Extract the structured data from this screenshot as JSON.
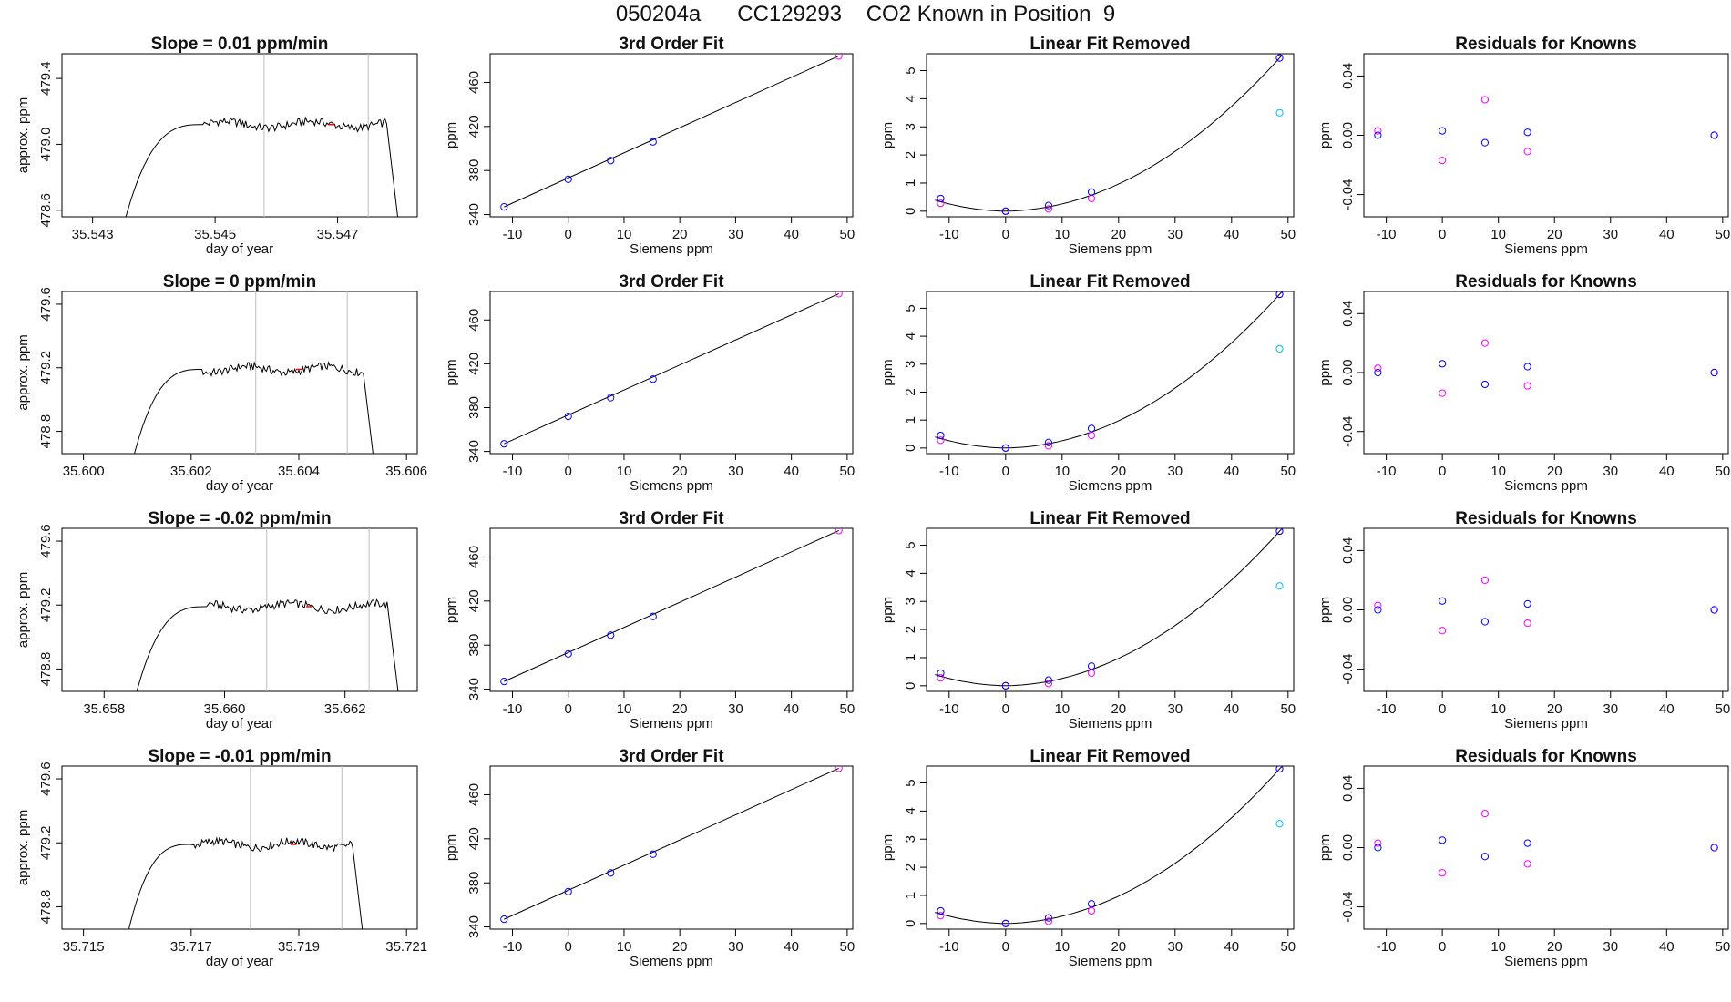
{
  "header": {
    "title": "050204a      CC129293    CO2 Known in Position  9"
  },
  "colors": {
    "series_line": "#000000",
    "red_marker": "#ff0000",
    "blue": "#0000ff",
    "magenta": "#ff00ff",
    "cyan": "#00bfff",
    "vline": "#bebebe"
  },
  "chart_data": [
    {
      "type": "line",
      "row": 1,
      "panel": "trace",
      "title": "Slope =  0.01  ppm/min",
      "xlabel": "day of year",
      "ylabel": "approx. ppm",
      "xlim": [
        35.5425,
        35.5483
      ],
      "ylim": [
        478.56,
        479.55
      ],
      "xticks": [
        "35.543",
        "35.545",
        "35.547"
      ],
      "yticks": [
        "478.6",
        "479.0",
        "479.4"
      ],
      "vlines": [
        35.5458,
        35.5475
      ],
      "trace": {
        "start": 35.5435,
        "rise": 35.5443,
        "plateau_start": 35.5448,
        "plateau_end": 35.5478,
        "end": 35.548,
        "level": 479.12,
        "base": 478.5,
        "amp": 0.025
      },
      "red_marks": [
        35.5469
      ]
    },
    {
      "type": "line",
      "row": 1,
      "panel": "fit",
      "title": "3rd Order Fit",
      "xlabel": "Siemens ppm",
      "ylabel": "ppm",
      "xlim": [
        -14,
        51
      ],
      "ylim": [
        338,
        486
      ],
      "xticks": [
        "-10",
        "0",
        "10",
        "20",
        "30",
        "40",
        "50"
      ],
      "yticks": [
        "340",
        "380",
        "420",
        "460"
      ],
      "points_x": [
        -11.5,
        0,
        7.6,
        15.2,
        48.5
      ],
      "points_y": [
        347,
        372,
        389,
        406,
        484
      ]
    },
    {
      "type": "scatter",
      "row": 1,
      "panel": "linear_removed",
      "title": "Linear Fit Removed",
      "xlabel": "Siemens ppm",
      "ylabel": "ppm",
      "xlim": [
        -14,
        51
      ],
      "ylim": [
        -0.2,
        5.6
      ],
      "xticks": [
        "-10",
        "0",
        "10",
        "20",
        "30",
        "40",
        "50"
      ],
      "yticks": [
        "0",
        "1",
        "2",
        "3",
        "4",
        "5"
      ],
      "points_x": [
        -11.5,
        0,
        7.6,
        15.2,
        48.5
      ],
      "blue_y": [
        0.45,
        0.0,
        0.2,
        0.68,
        5.45
      ],
      "magenta_y": [
        0.28,
        0.0,
        0.08,
        0.45,
        5.45
      ],
      "cyan_point": [
        48.5,
        3.5
      ]
    },
    {
      "type": "scatter",
      "row": 1,
      "panel": "residuals",
      "title": "Residuals for Knowns",
      "xlabel": "Siemens ppm",
      "ylabel": "ppm",
      "xlim": [
        -14,
        51
      ],
      "ylim": [
        -0.055,
        0.055
      ],
      "xticks": [
        "-10",
        "0",
        "10",
        "20",
        "30",
        "40",
        "50"
      ],
      "yticks": [
        "-0.04",
        "0.00",
        "0.04"
      ],
      "points_x": [
        -11.5,
        0,
        7.6,
        15.2,
        48.5
      ],
      "blue_y": [
        0.0,
        0.003,
        -0.005,
        0.002,
        0.0
      ],
      "magenta_y": [
        0.003,
        -0.017,
        0.024,
        -0.011,
        0.0
      ]
    },
    {
      "type": "line",
      "row": 2,
      "panel": "trace",
      "title": "Slope =  0  ppm/min",
      "xlabel": "day of year",
      "ylabel": "approx. ppm",
      "xlim": [
        35.5996,
        35.6062
      ],
      "ylim": [
        478.66,
        479.68
      ],
      "xticks": [
        "35.600",
        "35.602",
        "35.604",
        "35.606"
      ],
      "yticks": [
        "478.8",
        "479.2",
        "479.6"
      ],
      "vlines": [
        35.6032,
        35.6049
      ],
      "trace": {
        "start": 35.6009,
        "rise": 35.6017,
        "plateau_start": 35.6022,
        "plateau_end": 35.6052,
        "end": 35.6054,
        "level": 479.19,
        "base": 478.6,
        "amp": 0.025
      },
      "red_marks": [
        35.604
      ]
    },
    {
      "type": "line",
      "row": 2,
      "panel": "fit",
      "title": "3rd Order Fit",
      "xlabel": "Siemens ppm",
      "ylabel": "ppm",
      "xlim": [
        -14,
        51
      ],
      "ylim": [
        338,
        486
      ],
      "xticks": [
        "-10",
        "0",
        "10",
        "20",
        "30",
        "40",
        "50"
      ],
      "yticks": [
        "340",
        "380",
        "420",
        "460"
      ],
      "points_x": [
        -11.5,
        0,
        7.6,
        15.2,
        48.5
      ],
      "points_y": [
        347,
        372,
        389,
        406,
        484
      ]
    },
    {
      "type": "scatter",
      "row": 2,
      "panel": "linear_removed",
      "title": "Linear Fit Removed",
      "xlabel": "Siemens ppm",
      "ylabel": "ppm",
      "xlim": [
        -14,
        51
      ],
      "ylim": [
        -0.2,
        5.6
      ],
      "xticks": [
        "-10",
        "0",
        "10",
        "20",
        "30",
        "40",
        "50"
      ],
      "yticks": [
        "0",
        "1",
        "2",
        "3",
        "4",
        "5"
      ],
      "points_x": [
        -11.5,
        0,
        7.6,
        15.2,
        48.5
      ],
      "blue_y": [
        0.45,
        0.0,
        0.2,
        0.7,
        5.5
      ],
      "magenta_y": [
        0.28,
        0.0,
        0.08,
        0.45,
        5.5
      ],
      "cyan_point": [
        48.5,
        3.55
      ]
    },
    {
      "type": "scatter",
      "row": 2,
      "panel": "residuals",
      "title": "Residuals for Knowns",
      "xlabel": "Siemens ppm",
      "ylabel": "ppm",
      "xlim": [
        -14,
        51
      ],
      "ylim": [
        -0.055,
        0.055
      ],
      "xticks": [
        "-10",
        "0",
        "10",
        "20",
        "30",
        "40",
        "50"
      ],
      "yticks": [
        "-0.04",
        "0.00",
        "0.04"
      ],
      "points_x": [
        -11.5,
        0,
        7.6,
        15.2,
        48.5
      ],
      "blue_y": [
        0.0,
        0.006,
        -0.008,
        0.004,
        0.0
      ],
      "magenta_y": [
        0.003,
        -0.014,
        0.02,
        -0.009,
        0.0
      ]
    },
    {
      "type": "line",
      "row": 3,
      "panel": "trace",
      "title": "Slope =  -0.02  ppm/min",
      "xlabel": "day of year",
      "ylabel": "approx. ppm",
      "xlim": [
        35.6573,
        35.6632
      ],
      "ylim": [
        478.66,
        479.68
      ],
      "xticks": [
        "35.658",
        "35.660",
        "35.662"
      ],
      "yticks": [
        "478.8",
        "479.2",
        "479.6"
      ],
      "vlines": [
        35.6607,
        35.6624
      ],
      "trace": {
        "start": 35.6585,
        "rise": 35.6592,
        "plateau_start": 35.6597,
        "plateau_end": 35.6627,
        "end": 35.6629,
        "level": 479.19,
        "base": 478.6,
        "amp": 0.025
      },
      "red_marks": [
        35.6614
      ]
    },
    {
      "type": "line",
      "row": 3,
      "panel": "fit",
      "title": "3rd Order Fit",
      "xlabel": "Siemens ppm",
      "ylabel": "ppm",
      "xlim": [
        -14,
        51
      ],
      "ylim": [
        338,
        486
      ],
      "xticks": [
        "-10",
        "0",
        "10",
        "20",
        "30",
        "40",
        "50"
      ],
      "yticks": [
        "340",
        "380",
        "420",
        "460"
      ],
      "points_x": [
        -11.5,
        0,
        7.6,
        15.2,
        48.5
      ],
      "points_y": [
        347,
        372,
        389,
        406,
        484
      ]
    },
    {
      "type": "scatter",
      "row": 3,
      "panel": "linear_removed",
      "title": "Linear Fit Removed",
      "xlabel": "Siemens ppm",
      "ylabel": "ppm",
      "xlim": [
        -14,
        51
      ],
      "ylim": [
        -0.2,
        5.6
      ],
      "xticks": [
        "-10",
        "0",
        "10",
        "20",
        "30",
        "40",
        "50"
      ],
      "yticks": [
        "0",
        "1",
        "2",
        "3",
        "4",
        "5"
      ],
      "points_x": [
        -11.5,
        0,
        7.6,
        15.2,
        48.5
      ],
      "blue_y": [
        0.45,
        0.0,
        0.2,
        0.7,
        5.5
      ],
      "magenta_y": [
        0.28,
        0.0,
        0.08,
        0.45,
        5.5
      ],
      "cyan_point": [
        48.5,
        3.55
      ]
    },
    {
      "type": "scatter",
      "row": 3,
      "panel": "residuals",
      "title": "Residuals for Knowns",
      "xlabel": "Siemens ppm",
      "ylabel": "ppm",
      "xlim": [
        -14,
        51
      ],
      "ylim": [
        -0.055,
        0.055
      ],
      "xticks": [
        "-10",
        "0",
        "10",
        "20",
        "30",
        "40",
        "50"
      ],
      "yticks": [
        "-0.04",
        "0.00",
        "0.04"
      ],
      "points_x": [
        -11.5,
        0,
        7.6,
        15.2,
        48.5
      ],
      "blue_y": [
        0.0,
        0.006,
        -0.008,
        0.004,
        0.0
      ],
      "magenta_y": [
        0.003,
        -0.014,
        0.02,
        -0.009,
        0.0
      ]
    },
    {
      "type": "line",
      "row": 4,
      "panel": "trace",
      "title": "Slope =  -0.01  ppm/min",
      "xlabel": "day of year",
      "ylabel": "approx. ppm",
      "xlim": [
        35.7146,
        35.7212
      ],
      "ylim": [
        478.66,
        479.68
      ],
      "xticks": [
        "35.715",
        "35.717",
        "35.719",
        "35.721"
      ],
      "yticks": [
        "478.8",
        "479.2",
        "479.6"
      ],
      "vlines": [
        35.7181,
        35.7198
      ],
      "trace": {
        "start": 35.7158,
        "rise": 35.7166,
        "plateau_start": 35.717,
        "plateau_end": 35.72,
        "end": 35.7202,
        "level": 479.19,
        "base": 478.6,
        "amp": 0.025
      },
      "red_marks": [
        35.7189
      ]
    },
    {
      "type": "line",
      "row": 4,
      "panel": "fit",
      "title": "3rd Order Fit",
      "xlabel": "Siemens ppm",
      "ylabel": "ppm",
      "xlim": [
        -14,
        51
      ],
      "ylim": [
        338,
        486
      ],
      "xticks": [
        "-10",
        "0",
        "10",
        "20",
        "30",
        "40",
        "50"
      ],
      "yticks": [
        "340",
        "380",
        "420",
        "460"
      ],
      "points_x": [
        -11.5,
        0,
        7.6,
        15.2,
        48.5
      ],
      "points_y": [
        347,
        372,
        389,
        406,
        484
      ]
    },
    {
      "type": "scatter",
      "row": 4,
      "panel": "linear_removed",
      "title": "Linear Fit Removed",
      "xlabel": "Siemens ppm",
      "ylabel": "ppm",
      "xlim": [
        -14,
        51
      ],
      "ylim": [
        -0.2,
        5.6
      ],
      "xticks": [
        "-10",
        "0",
        "10",
        "20",
        "30",
        "40",
        "50"
      ],
      "yticks": [
        "0",
        "1",
        "2",
        "3",
        "4",
        "5"
      ],
      "points_x": [
        -11.5,
        0,
        7.6,
        15.2,
        48.5
      ],
      "blue_y": [
        0.45,
        0.0,
        0.2,
        0.7,
        5.5
      ],
      "magenta_y": [
        0.28,
        0.0,
        0.08,
        0.45,
        5.5
      ],
      "cyan_point": [
        48.5,
        3.55
      ]
    },
    {
      "type": "scatter",
      "row": 4,
      "panel": "residuals",
      "title": "Residuals for Knowns",
      "xlabel": "Siemens ppm",
      "ylabel": "ppm",
      "xlim": [
        -14,
        51
      ],
      "ylim": [
        -0.055,
        0.055
      ],
      "xticks": [
        "-10",
        "0",
        "10",
        "20",
        "30",
        "40",
        "50"
      ],
      "yticks": [
        "-0.04",
        "0.00",
        "0.04"
      ],
      "points_x": [
        -11.5,
        0,
        7.6,
        15.2,
        48.5
      ],
      "blue_y": [
        0.0,
        0.005,
        -0.006,
        0.003,
        0.0
      ],
      "magenta_y": [
        0.003,
        -0.017,
        0.023,
        -0.011,
        0.0
      ]
    }
  ]
}
